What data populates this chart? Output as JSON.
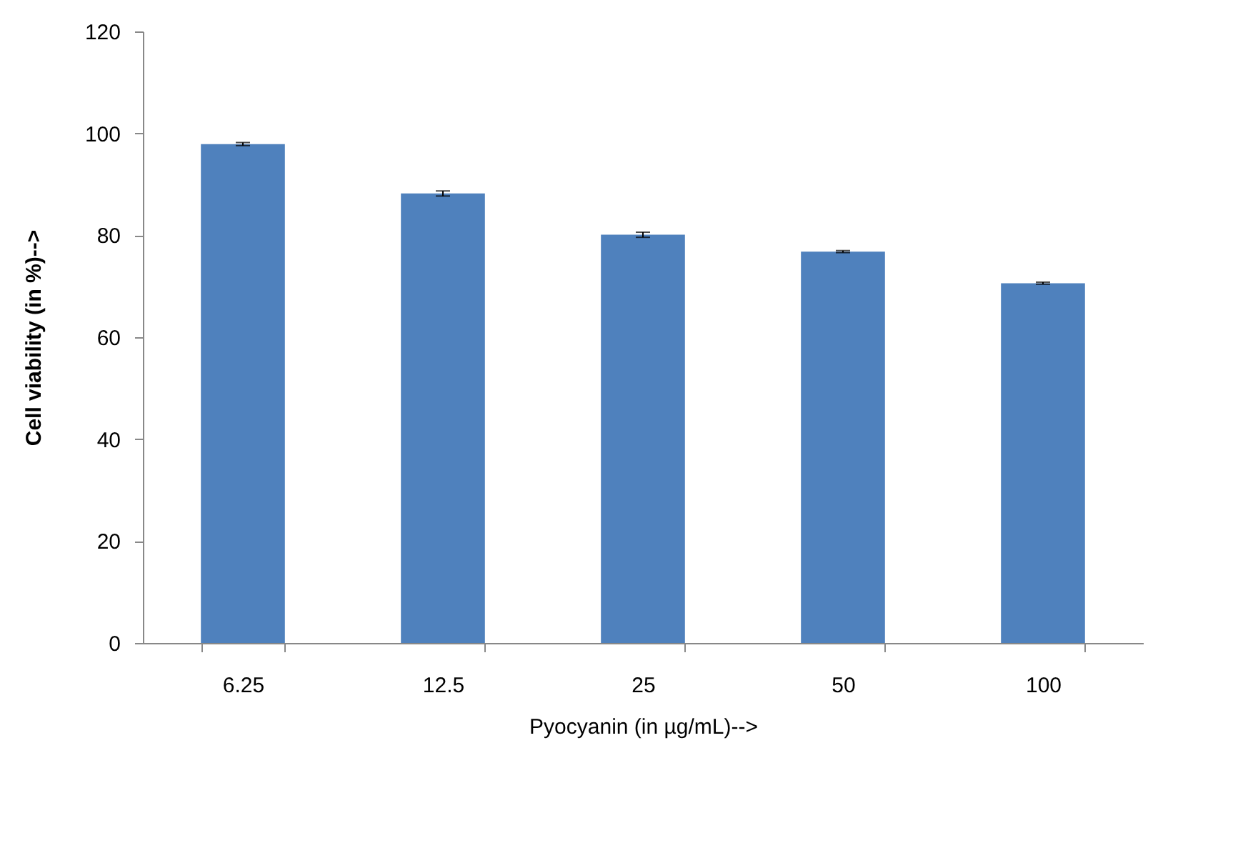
{
  "chart_data": {
    "type": "bar",
    "xlabel": "Pyocyanin  (in µg/mL)-->",
    "ylabel": "Cell viability  (in %)-->",
    "categories": [
      "6.25",
      "12.5",
      "25",
      "50",
      "100"
    ],
    "series": [
      {
        "color": "#4f81bd",
        "values": [
          97.9,
          88.2,
          80.1,
          76.8,
          70.6
        ],
        "errors": [
          0.3,
          0.5,
          0.5,
          0.2,
          0.2
        ]
      }
    ],
    "ylim": [
      0,
      120
    ],
    "yticks": [
      0,
      20,
      40,
      60,
      80,
      100,
      120
    ],
    "grid": false
  }
}
